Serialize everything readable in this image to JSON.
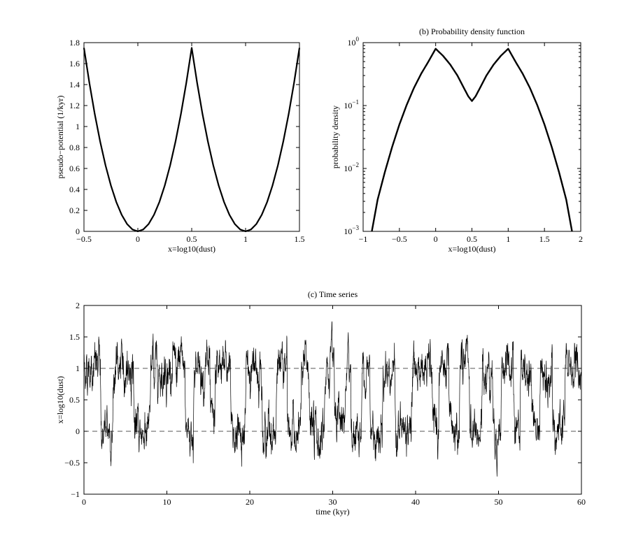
{
  "figure": {
    "background": "#ffffff",
    "ink": "#000000"
  },
  "chart_data": [
    {
      "id": "a",
      "type": "line",
      "title": "",
      "xlabel": "x=log10(dust)",
      "ylabel": "pseudo−potential  (1/kyr)",
      "xlim": [
        -0.5,
        1.5
      ],
      "ylim": [
        0,
        1.8
      ],
      "x_scale": "linear",
      "y_scale": "linear",
      "xticks": [
        -0.5,
        0,
        0.5,
        1,
        1.5
      ],
      "xtick_labels": [
        "−0.5",
        "0",
        "0.5",
        "1",
        "1.5"
      ],
      "yticks": [
        0,
        0.2,
        0.4,
        0.6,
        0.8,
        1,
        1.2,
        1.4,
        1.6,
        1.8
      ],
      "ytick_labels": [
        "0",
        "0.2",
        "0.4",
        "0.6",
        "0.8",
        "1",
        "1.2",
        "1.4",
        "1.6",
        "1.8"
      ],
      "grid": false,
      "series": [
        {
          "color": "#000000",
          "x": [
            -0.5,
            -0.45,
            -0.4,
            -0.35,
            -0.3,
            -0.25,
            -0.2,
            -0.15,
            -0.1,
            -0.05,
            0,
            0.05,
            0.1,
            0.15,
            0.2,
            0.25,
            0.3,
            0.35,
            0.4,
            0.45,
            0.5,
            0.55,
            0.6,
            0.65,
            0.7,
            0.75,
            0.8,
            0.85,
            0.9,
            0.95,
            1,
            1.05,
            1.1,
            1.15,
            1.2,
            1.25,
            1.3,
            1.35,
            1.4,
            1.45,
            1.5
          ],
          "y": [
            1.75,
            1.418,
            1.12,
            0.858,
            0.63,
            0.438,
            0.28,
            0.158,
            0.07,
            0.018,
            0,
            0.018,
            0.07,
            0.158,
            0.28,
            0.438,
            0.63,
            0.858,
            1.12,
            1.418,
            1.75,
            1.418,
            1.12,
            0.858,
            0.63,
            0.438,
            0.28,
            0.158,
            0.07,
            0.018,
            0,
            0.018,
            0.07,
            0.158,
            0.28,
            0.438,
            0.63,
            0.858,
            1.12,
            1.418,
            1.75
          ]
        }
      ]
    },
    {
      "id": "b",
      "type": "line",
      "title": "(b) Probability density function",
      "xlabel": "x=log10(dust)",
      "ylabel": "probability density",
      "xlim": [
        -1,
        2
      ],
      "ylim": [
        0.001,
        1
      ],
      "x_scale": "linear",
      "y_scale": "log",
      "xticks": [
        -1,
        -0.5,
        0,
        0.5,
        1,
        1.5,
        2
      ],
      "xtick_labels": [
        "−1",
        "−0.5",
        "0",
        "0.5",
        "1",
        "1.5",
        "2"
      ],
      "yticks": [
        0.001,
        0.01,
        0.1,
        1
      ],
      "ytick_labels": [
        {
          "base": "10",
          "exp": "−3"
        },
        {
          "base": "10",
          "exp": "−2"
        },
        {
          "base": "10",
          "exp": "−1"
        },
        {
          "base": "10",
          "exp": "0"
        }
      ],
      "grid": false,
      "series": [
        {
          "color": "#000000",
          "x": [
            -0.88,
            -0.8,
            -0.7,
            -0.6,
            -0.5,
            -0.4,
            -0.3,
            -0.2,
            -0.1,
            0,
            0.1,
            0.2,
            0.3,
            0.4,
            0.45,
            0.5,
            0.55,
            0.6,
            0.7,
            0.8,
            0.9,
            1,
            1.1,
            1.2,
            1.3,
            1.4,
            1.5,
            1.6,
            1.7,
            1.8,
            1.88
          ],
          "y": [
            0.001,
            0.0032,
            0.0088,
            0.022,
            0.05,
            0.102,
            0.19,
            0.32,
            0.5,
            0.8,
            0.62,
            0.45,
            0.3,
            0.18,
            0.14,
            0.118,
            0.14,
            0.18,
            0.3,
            0.45,
            0.62,
            0.8,
            0.5,
            0.32,
            0.19,
            0.102,
            0.05,
            0.022,
            0.0088,
            0.0032,
            0.001
          ]
        }
      ]
    },
    {
      "id": "c",
      "type": "line",
      "title": "(c) Time series",
      "xlabel": "time  (kyr)",
      "ylabel": "x=log10(dust)",
      "xlim": [
        0,
        60
      ],
      "ylim": [
        -1,
        2
      ],
      "x_scale": "linear",
      "y_scale": "linear",
      "xticks": [
        0,
        10,
        20,
        30,
        40,
        50,
        60
      ],
      "xtick_labels": [
        "0",
        "10",
        "20",
        "30",
        "40",
        "50",
        "60"
      ],
      "yticks": [
        -1,
        -0.5,
        0,
        0.5,
        1,
        1.5,
        2
      ],
      "ytick_labels": [
        "−1",
        "−0.5",
        "0",
        "0.5",
        "1",
        "1.5",
        "2"
      ],
      "grid": false,
      "reference_lines": [
        {
          "y": 1,
          "style": "dashed",
          "color": "#555555"
        },
        {
          "y": 0,
          "style": "dashed",
          "color": "#555555"
        }
      ],
      "state_sequence": {
        "time": [
          0,
          2,
          3.5,
          6,
          8,
          10.2,
          12.2,
          13.2,
          15.2,
          15.8,
          17.7,
          19.5,
          21.5,
          23.2,
          24.5,
          26.2,
          27.2,
          29,
          30.2,
          31.5,
          32.2,
          33.5,
          34.5,
          36,
          37.5,
          39.5,
          42,
          42.8,
          44,
          45.3,
          46.5,
          48,
          49.3,
          50.3,
          51.8,
          52.6,
          54,
          55,
          56.5,
          58,
          60
        ],
        "level": [
          1,
          0,
          1,
          0,
          1,
          1,
          0,
          1,
          0,
          1,
          0,
          1,
          0,
          1,
          0,
          1,
          0,
          1,
          0,
          1,
          0,
          1,
          0,
          1,
          0,
          1,
          0,
          1,
          0,
          1,
          0,
          1,
          0,
          1,
          0,
          1,
          0,
          1,
          0,
          1,
          1
        ]
      },
      "series": [
        {
          "color": "#000000",
          "noise_std": 0.22,
          "samples": 3000
        }
      ]
    }
  ]
}
